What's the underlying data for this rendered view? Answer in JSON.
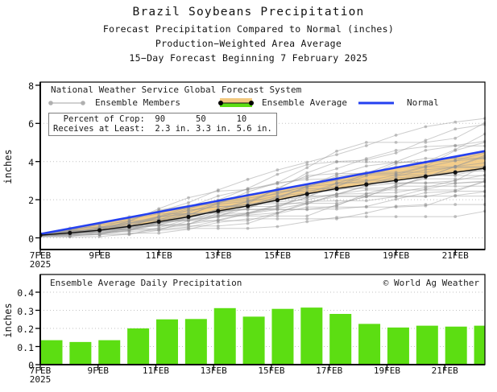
{
  "title": {
    "line1": "Brazil Soybeans Precipitation",
    "line2": "Forecast Precipitation Compared to Normal (inches)",
    "line3": "Production−Weighted Area Average",
    "line4": "15−Day Forecast Beginning 7 February 2025"
  },
  "colors": {
    "normal_blue": "#2440f0",
    "band_below_orange": "#f2c87e",
    "band_above_green": "#5cde12",
    "bar_green": "#5cde12",
    "ensemble_gray": "#9a9a9a",
    "average_black": "#111111",
    "grid_gray": "#c2c2c2"
  },
  "chart_data": [
    {
      "id": "cumulative-forecast",
      "type": "line",
      "source_note": "National Weather Service Global Forecast System",
      "ylabel": "inches",
      "ylim": [
        -0.6,
        8.2
      ],
      "yticks": [
        0,
        2,
        4,
        6,
        8
      ],
      "grid": "dotted-horizontal",
      "x_dates": [
        "7FEB",
        "8FEB",
        "9FEB",
        "10FEB",
        "11FEB",
        "12FEB",
        "13FEB",
        "14FEB",
        "15FEB",
        "16FEB",
        "17FEB",
        "18FEB",
        "19FEB",
        "20FEB",
        "21FEB",
        "22FEB"
      ],
      "xtick_labels": [
        "7FEB",
        "9FEB",
        "11FEB",
        "13FEB",
        "15FEB",
        "17FEB",
        "19FEB",
        "21FEB"
      ],
      "x_year": "2025",
      "series": [
        {
          "name": "Ensemble Average",
          "values": [
            0.14,
            0.26,
            0.4,
            0.6,
            0.85,
            1.1,
            1.41,
            1.67,
            1.98,
            2.3,
            2.58,
            2.8,
            3.01,
            3.22,
            3.43,
            3.65
          ]
        },
        {
          "name": "Normal",
          "values": [
            0.2,
            0.49,
            0.78,
            1.07,
            1.36,
            1.65,
            1.94,
            2.23,
            2.52,
            2.81,
            3.1,
            3.39,
            3.68,
            3.97,
            4.26,
            4.55
          ]
        }
      ],
      "band": {
        "between": [
          "Ensemble Average",
          "Normal"
        ],
        "deficit_color": "#f2c87e",
        "surplus_color": "#5cde12"
      },
      "ensemble_members": {
        "count": 31,
        "final_values": [
          6.4,
          6.0,
          5.7,
          5.3,
          5.0,
          4.8,
          4.6,
          4.45,
          4.3,
          4.2,
          4.1,
          4.0,
          3.9,
          3.8,
          3.7,
          3.6,
          3.5,
          3.4,
          3.3,
          3.2,
          3.1,
          3.0,
          2.9,
          2.8,
          2.7,
          2.6,
          2.4,
          2.2,
          2.0,
          1.7,
          1.3
        ]
      },
      "legend": {
        "members_label": "Ensemble Members",
        "average_label": "Ensemble Average",
        "normal_label": "Normal"
      },
      "crop_box": {
        "line1": "  Percent of Crop:  90      50      10",
        "line2": "Receives at Least:  2.3 in. 3.3 in. 5.6 in.",
        "percents": [
          90,
          50,
          10
        ],
        "amounts_inches": [
          2.3,
          3.3,
          5.6
        ]
      }
    },
    {
      "id": "daily-precipitation",
      "type": "bar",
      "title": "Ensemble Average Daily Precipitation",
      "credit": "© World Ag Weather",
      "ylabel": "inches",
      "ylim": [
        0,
        0.45
      ],
      "yticks": [
        0,
        0.1,
        0.2,
        0.3,
        0.4
      ],
      "grid": "dotted-horizontal",
      "categories": [
        "7FEB",
        "8FEB",
        "9FEB",
        "10FEB",
        "11FEB",
        "12FEB",
        "13FEB",
        "14FEB",
        "15FEB",
        "16FEB",
        "17FEB",
        "18FEB",
        "19FEB",
        "20FEB",
        "21FEB",
        "22FEB"
      ],
      "values": [
        0.135,
        0.125,
        0.135,
        0.2,
        0.25,
        0.252,
        0.312,
        0.265,
        0.308,
        0.315,
        0.28,
        0.225,
        0.205,
        0.215,
        0.21,
        0.215
      ],
      "xtick_labels": [
        "7FEB",
        "9FEB",
        "11FEB",
        "13FEB",
        "15FEB",
        "17FEB",
        "19FEB",
        "21FEB"
      ],
      "x_year": "2025"
    }
  ]
}
